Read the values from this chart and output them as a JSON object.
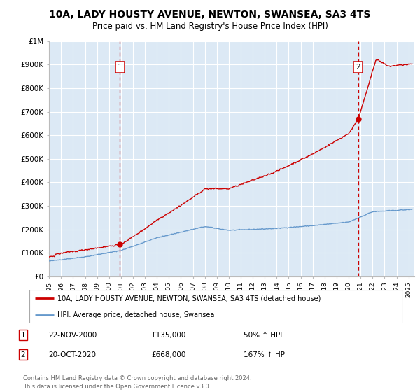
{
  "title": "10A, LADY HOUSTY AVENUE, NEWTON, SWANSEA, SA3 4TS",
  "subtitle": "Price paid vs. HM Land Registry's House Price Index (HPI)",
  "title_fontsize": 10,
  "subtitle_fontsize": 8.5,
  "background_color": "#ffffff",
  "plot_bg_color": "#dce9f5",
  "grid_color": "#ffffff",
  "sale1_date_num": 2000.9,
  "sale2_date_num": 2020.8,
  "sale1_price": 135000,
  "sale2_price": 668000,
  "legend_line1": "10A, LADY HOUSTY AVENUE, NEWTON, SWANSEA, SA3 4TS (detached house)",
  "legend_line2": "HPI: Average price, detached house, Swansea",
  "table_entries": [
    {
      "num": "1",
      "date": "22-NOV-2000",
      "price": "£135,000",
      "hpi": "50% ↑ HPI"
    },
    {
      "num": "2",
      "date": "20-OCT-2020",
      "price": "£668,000",
      "hpi": "167% ↑ HPI"
    }
  ],
  "footnote": "Contains HM Land Registry data © Crown copyright and database right 2024.\nThis data is licensed under the Open Government Licence v3.0.",
  "red_color": "#cc0000",
  "blue_color": "#6699cc",
  "xmin": 1995.0,
  "xmax": 2025.5,
  "ymin": 0,
  "ymax": 1000000,
  "yticks": [
    0,
    100000,
    200000,
    300000,
    400000,
    500000,
    600000,
    700000,
    800000,
    900000,
    1000000
  ],
  "ylabels": [
    "£0",
    "£100K",
    "£200K",
    "£300K",
    "£400K",
    "£500K",
    "£600K",
    "£700K",
    "£800K",
    "£900K",
    "£1M"
  ]
}
